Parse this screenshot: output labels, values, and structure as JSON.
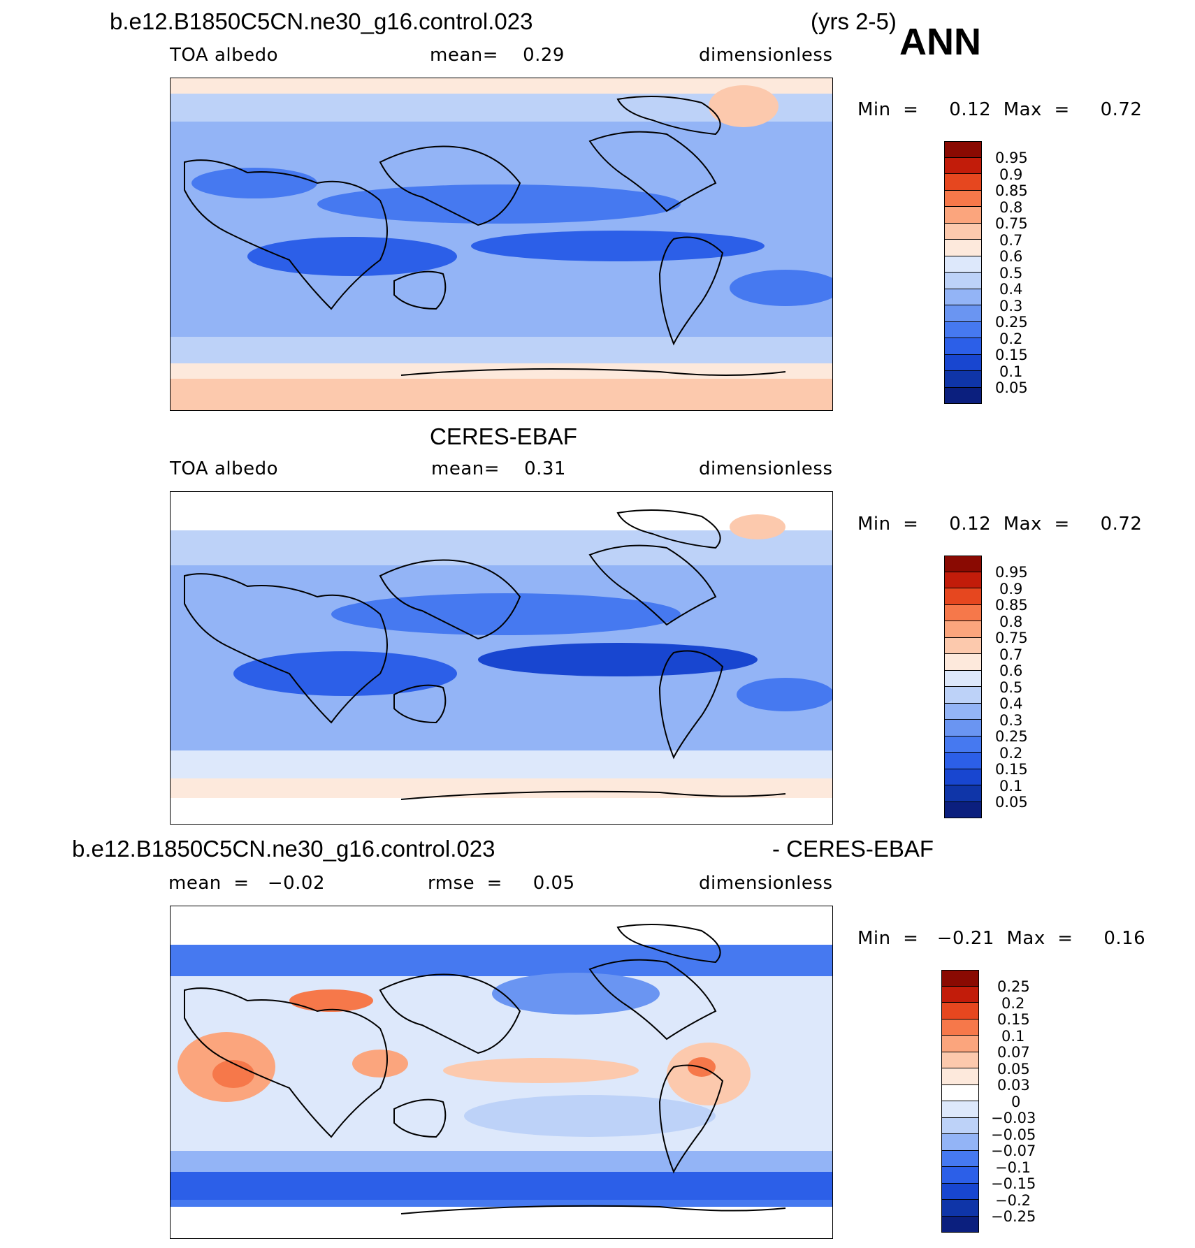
{
  "figure": {
    "season": "ANN"
  },
  "panels": [
    {
      "id": "model",
      "title_left": "b.e12.B1850C5CN.ne30_g16.control.023",
      "title_right": "(yrs 2-5)",
      "variable": "TOA albedo",
      "stat_text": "mean=    0.29",
      "units": "dimensionless",
      "minmax": "Min  =     0.12  Max  =     0.72",
      "colorbar_labels": [
        "0.95",
        "0.9",
        "0.85",
        "0.8",
        "0.75",
        "0.7",
        "0.6",
        "0.5",
        "0.4",
        "0.3",
        "0.25",
        "0.2",
        "0.15",
        "0.1",
        "0.05"
      ]
    },
    {
      "id": "obs",
      "title_left": "CERES-EBAF",
      "variable": "TOA albedo",
      "stat_text": "mean=    0.31",
      "units": "dimensionless",
      "minmax": "Min  =     0.12  Max  =     0.72",
      "colorbar_labels": [
        "0.95",
        "0.9",
        "0.85",
        "0.8",
        "0.75",
        "0.7",
        "0.6",
        "0.5",
        "0.4",
        "0.3",
        "0.25",
        "0.2",
        "0.15",
        "0.1",
        "0.05"
      ]
    },
    {
      "id": "diff",
      "title_left": "b.e12.B1850C5CN.ne30_g16.control.023",
      "title_right": "- CERES-EBAF",
      "mean_text": "mean  =   −0.02",
      "rmse_text": "rmse  =     0.05",
      "units": "dimensionless",
      "minmax": "Min  =   −0.21  Max  =     0.16",
      "colorbar_labels": [
        "0.25",
        "0.2",
        "0.15",
        "0.1",
        "0.07",
        "0.05",
        "0.03",
        "0",
        "−0.03",
        "−0.05",
        "−0.07",
        "−0.1",
        "−0.15",
        "−0.2",
        "−0.25"
      ]
    }
  ],
  "colors": {
    "scale": [
      "#0b1f7e",
      "#0f35a8",
      "#1846d0",
      "#2c5fe8",
      "#4679f0",
      "#6a95f2",
      "#93b4f6",
      "#bdd2f8",
      "#dde8fb",
      "#fde9dc",
      "#fcc9ad",
      "#fba57d",
      "#f6784a",
      "#e6471f",
      "#c21c0a",
      "#8a0a02"
    ],
    "land_outline": "#000000"
  }
}
